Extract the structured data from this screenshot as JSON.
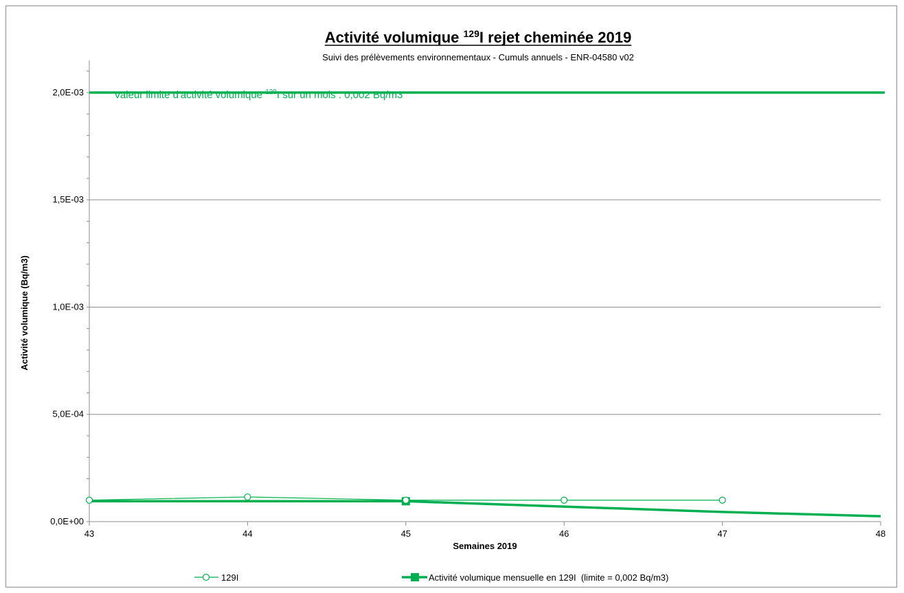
{
  "chart_data": {
    "type": "line",
    "title": {
      "prefix": "Activité volumique ",
      "superscript": "129",
      "suffix": "I rejet cheminée 2019"
    },
    "subtitle": "Suivi des prélèvements environnementaux - Cumuls annuels - ENR-04580 v02",
    "xlabel": "Semaines 2019",
    "ylabel": "Activité volumique (Bq/m3)",
    "xlim": [
      43,
      48
    ],
    "ylim": [
      0,
      0.00215
    ],
    "x_ticks": [
      {
        "value": 43,
        "label": "43"
      },
      {
        "value": 44,
        "label": "44"
      },
      {
        "value": 45,
        "label": "45"
      },
      {
        "value": 46,
        "label": "46"
      },
      {
        "value": 47,
        "label": "47"
      },
      {
        "value": 48,
        "label": "48"
      }
    ],
    "y_ticks": [
      {
        "value": 0,
        "label": "0,0E+00"
      },
      {
        "value": 0.0005,
        "label": "5,0E-04"
      },
      {
        "value": 0.001,
        "label": "1,0E-03"
      },
      {
        "value": 0.0015,
        "label": "1,5E-03"
      },
      {
        "value": 0.002,
        "label": "2,0E-03"
      }
    ],
    "grid": true,
    "legend_position": "bottom",
    "limit_line": {
      "value": 0.002,
      "color": "#00b050",
      "label_prefix": "Valeur limite d'activité volumique ",
      "label_superscript": "129",
      "label_suffix": "I sur un mois : 0,002 Bq/m3"
    },
    "series": [
      {
        "name": "129I",
        "color": "#00b050",
        "marker": "circle-open",
        "x": [
          43,
          44,
          45,
          46,
          47
        ],
        "y": [
          0.0001,
          0.000115,
          0.0001,
          0.0001,
          0.0001
        ]
      },
      {
        "name": "Activité volumique mensuelle en 129I  (limite = 0,002 Bq/m3)",
        "color": "#00b050",
        "marker": "square-filled",
        "x": [
          43,
          44,
          45,
          46,
          47,
          48
        ],
        "y": [
          9.5e-05,
          9.5e-05,
          9.5e-05,
          7e-05,
          4.5e-05,
          2.5e-05
        ],
        "marker_x": [
          45
        ],
        "marker_y": [
          9.5e-05
        ]
      }
    ]
  }
}
